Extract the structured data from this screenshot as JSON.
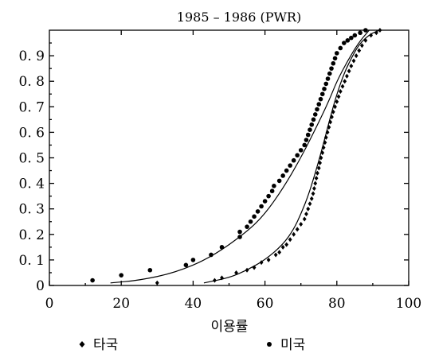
{
  "chart_data": {
    "type": "scatter",
    "title": "1985 – 1986 (PWR)",
    "xlabel": "이용률",
    "ylabel": "",
    "xlim": [
      0,
      100
    ],
    "ylim": [
      0,
      1
    ],
    "x_ticks": [
      "0",
      "20",
      "40",
      "60",
      "80",
      "100"
    ],
    "y_ticks": [
      "0",
      "0. 1",
      "0. 2",
      "0. 3",
      "0. 4",
      "0. 5",
      "0. 6",
      "0. 7",
      "0. 8",
      "0. 9"
    ],
    "grid": false,
    "legend_position": "bottom",
    "series": [
      {
        "name": "타국",
        "marker": "diamond",
        "points": [
          [
            30,
            0.01
          ],
          [
            46,
            0.02
          ],
          [
            48,
            0.03
          ],
          [
            52,
            0.05
          ],
          [
            55,
            0.06
          ],
          [
            57,
            0.07
          ],
          [
            59,
            0.09
          ],
          [
            61,
            0.1
          ],
          [
            63,
            0.12
          ],
          [
            64,
            0.13
          ],
          [
            65,
            0.15
          ],
          [
            66,
            0.16
          ],
          [
            67,
            0.18
          ],
          [
            68,
            0.2
          ],
          [
            69,
            0.22
          ],
          [
            70,
            0.24
          ],
          [
            71,
            0.26
          ],
          [
            71.5,
            0.28
          ],
          [
            72,
            0.3
          ],
          [
            72.5,
            0.32
          ],
          [
            73,
            0.34
          ],
          [
            73.4,
            0.36
          ],
          [
            73.7,
            0.38
          ],
          [
            74,
            0.4
          ],
          [
            74.3,
            0.42
          ],
          [
            74.6,
            0.44
          ],
          [
            75,
            0.46
          ],
          [
            75.3,
            0.48
          ],
          [
            75.6,
            0.5
          ],
          [
            76,
            0.52
          ],
          [
            76.3,
            0.54
          ],
          [
            76.7,
            0.56
          ],
          [
            77,
            0.58
          ],
          [
            77.4,
            0.6
          ],
          [
            77.8,
            0.62
          ],
          [
            78.2,
            0.64
          ],
          [
            78.6,
            0.66
          ],
          [
            79,
            0.68
          ],
          [
            79.5,
            0.7
          ],
          [
            80,
            0.72
          ],
          [
            80.5,
            0.74
          ],
          [
            81,
            0.76
          ],
          [
            81.6,
            0.78
          ],
          [
            82.2,
            0.8
          ],
          [
            82.8,
            0.82
          ],
          [
            83.4,
            0.84
          ],
          [
            84,
            0.86
          ],
          [
            84.7,
            0.88
          ],
          [
            85.4,
            0.9
          ],
          [
            86.2,
            0.92
          ],
          [
            87,
            0.94
          ],
          [
            88,
            0.96
          ],
          [
            89.5,
            0.98
          ],
          [
            91,
            0.99
          ],
          [
            92,
            1.0
          ]
        ]
      },
      {
        "name": "미국",
        "marker": "circle",
        "points": [
          [
            12,
            0.02
          ],
          [
            20,
            0.04
          ],
          [
            28,
            0.06
          ],
          [
            38,
            0.08
          ],
          [
            40,
            0.1
          ],
          [
            45,
            0.12
          ],
          [
            48,
            0.15
          ],
          [
            53,
            0.19
          ],
          [
            53,
            0.21
          ],
          [
            55,
            0.23
          ],
          [
            56,
            0.25
          ],
          [
            57,
            0.27
          ],
          [
            58,
            0.29
          ],
          [
            59,
            0.31
          ],
          [
            60,
            0.33
          ],
          [
            61,
            0.35
          ],
          [
            62,
            0.37
          ],
          [
            62.5,
            0.39
          ],
          [
            64,
            0.41
          ],
          [
            65,
            0.43
          ],
          [
            66,
            0.45
          ],
          [
            67,
            0.47
          ],
          [
            68,
            0.49
          ],
          [
            69,
            0.51
          ],
          [
            70,
            0.53
          ],
          [
            71,
            0.55
          ],
          [
            71.5,
            0.57
          ],
          [
            72,
            0.59
          ],
          [
            72.5,
            0.61
          ],
          [
            73,
            0.63
          ],
          [
            73.5,
            0.65
          ],
          [
            74,
            0.67
          ],
          [
            74.5,
            0.69
          ],
          [
            75,
            0.71
          ],
          [
            75.5,
            0.73
          ],
          [
            76,
            0.75
          ],
          [
            76.5,
            0.77
          ],
          [
            77,
            0.79
          ],
          [
            77.5,
            0.81
          ],
          [
            78,
            0.83
          ],
          [
            78.5,
            0.85
          ],
          [
            79,
            0.87
          ],
          [
            79.5,
            0.89
          ],
          [
            80,
            0.91
          ],
          [
            81,
            0.93
          ],
          [
            82,
            0.95
          ],
          [
            83,
            0.96
          ],
          [
            84,
            0.97
          ],
          [
            85,
            0.98
          ],
          [
            86.5,
            0.99
          ],
          [
            88,
            1.0
          ]
        ]
      }
    ],
    "fitted_curves": [
      {
        "series": "타국",
        "points": [
          [
            43,
            0.01
          ],
          [
            50,
            0.03
          ],
          [
            55,
            0.06
          ],
          [
            60,
            0.1
          ],
          [
            65,
            0.16
          ],
          [
            68,
            0.22
          ],
          [
            70,
            0.28
          ],
          [
            72,
            0.35
          ],
          [
            74,
            0.44
          ],
          [
            76,
            0.54
          ],
          [
            78,
            0.65
          ],
          [
            80,
            0.75
          ],
          [
            82,
            0.83
          ],
          [
            84,
            0.89
          ],
          [
            86,
            0.94
          ],
          [
            88,
            0.97
          ],
          [
            90,
            0.99
          ],
          [
            92,
            1.0
          ]
        ]
      },
      {
        "series": "미국",
        "points": [
          [
            17,
            0.01
          ],
          [
            25,
            0.02
          ],
          [
            35,
            0.05
          ],
          [
            45,
            0.11
          ],
          [
            55,
            0.21
          ],
          [
            60,
            0.28
          ],
          [
            65,
            0.38
          ],
          [
            70,
            0.5
          ],
          [
            75,
            0.64
          ],
          [
            78,
            0.73
          ],
          [
            80,
            0.8
          ],
          [
            83,
            0.88
          ],
          [
            86,
            0.95
          ],
          [
            89,
            1.0
          ]
        ]
      }
    ]
  }
}
